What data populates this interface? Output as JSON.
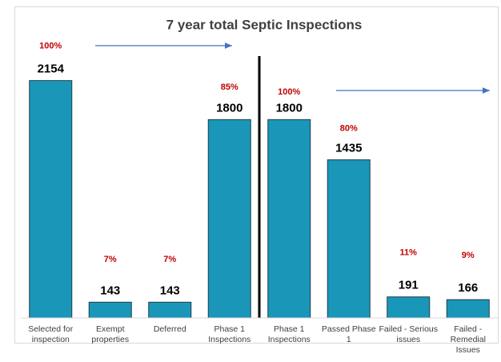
{
  "chart_data": {
    "type": "bar",
    "title": "7 year total Septic Inspections",
    "categories": [
      "Selected for inspection",
      "Exempt properties",
      "Deferred",
      "Phase 1 Inspections",
      "Phase 1 Inspections",
      "Passed Phase 1",
      "Failed - Serious issues",
      "Failed - Remedial Issues"
    ],
    "values": [
      2154,
      143,
      143,
      1800,
      1800,
      1435,
      191,
      166
    ],
    "annotations": [
      "100%",
      "7%",
      "7%",
      "85%",
      "100%",
      "80%",
      "11%",
      "9%"
    ],
    "color": "#1a96b8",
    "annotation_color": "#c00000",
    "arrow_color": "#4472c4",
    "ylim": [
      0,
      2500
    ]
  }
}
